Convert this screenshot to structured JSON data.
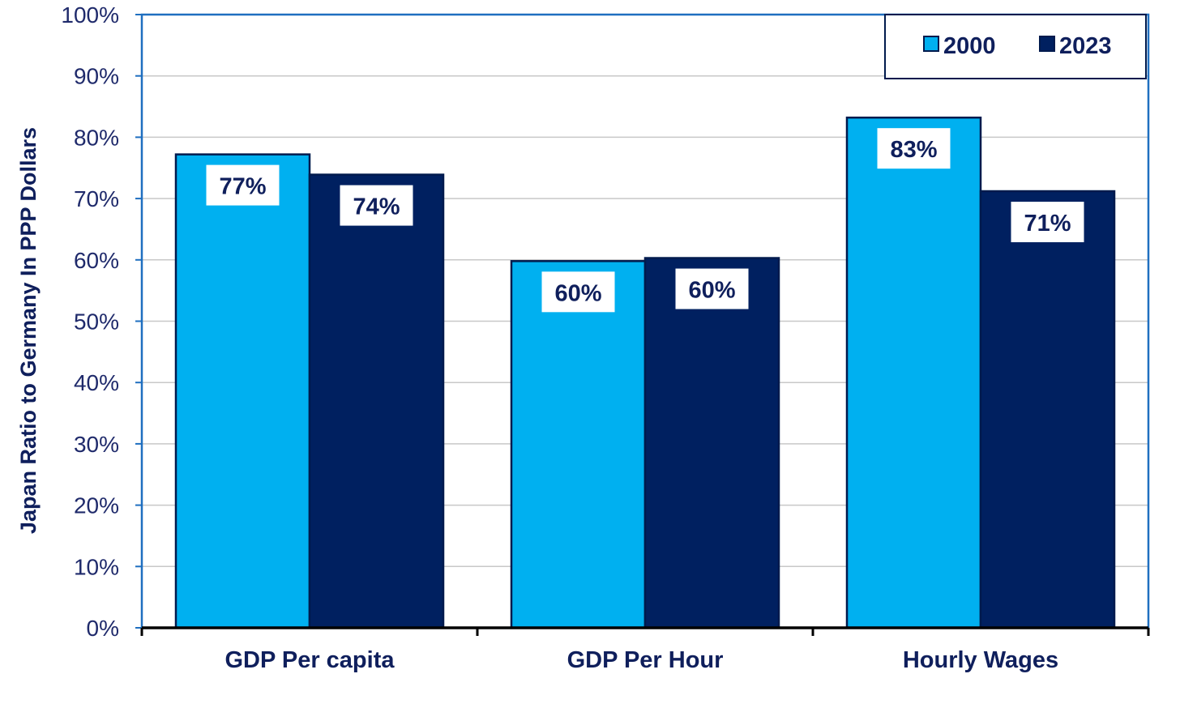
{
  "chart_data": {
    "type": "bar",
    "ylabel": "Japan Ratio to Germany In PPP Dollars",
    "xlabel": "",
    "ylim": [
      0,
      100
    ],
    "y_ticks": [
      "0%",
      "10%",
      "20%",
      "30%",
      "40%",
      "50%",
      "60%",
      "70%",
      "80%",
      "90%",
      "100%"
    ],
    "grid": true,
    "legend_position": "top-right",
    "categories": [
      "GDP Per capita",
      "GDP Per Hour",
      "Hourly Wages"
    ],
    "series": [
      {
        "name": "2000",
        "color": "#00b0f0",
        "values": [
          77.2,
          59.8,
          83.2
        ],
        "labels": [
          "77%",
          "60%",
          "83%"
        ]
      },
      {
        "name": "2023",
        "color": "#002060",
        "values": [
          73.9,
          60.3,
          71.2
        ],
        "labels": [
          "74%",
          "60%",
          "71%"
        ]
      }
    ]
  }
}
